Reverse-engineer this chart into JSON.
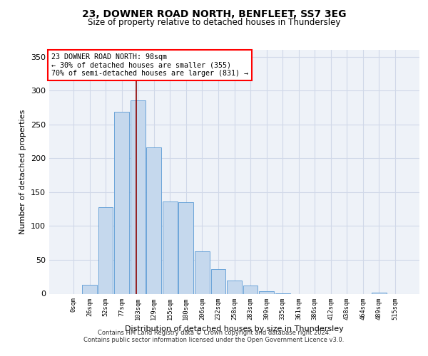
{
  "title": "23, DOWNER ROAD NORTH, BENFLEET, SS7 3EG",
  "subtitle": "Size of property relative to detached houses in Thundersley",
  "xlabel": "Distribution of detached houses by size in Thundersley",
  "ylabel": "Number of detached properties",
  "footer_line1": "Contains HM Land Registry data © Crown copyright and database right 2024.",
  "footer_line2": "Contains public sector information licensed under the Open Government Licence v3.0.",
  "bin_labels": [
    "0sqm",
    "26sqm",
    "52sqm",
    "77sqm",
    "103sqm",
    "129sqm",
    "155sqm",
    "180sqm",
    "206sqm",
    "232sqm",
    "258sqm",
    "283sqm",
    "309sqm",
    "335sqm",
    "361sqm",
    "386sqm",
    "412sqm",
    "438sqm",
    "464sqm",
    "489sqm",
    "515sqm"
  ],
  "bar_heights": [
    0,
    13,
    128,
    269,
    285,
    216,
    136,
    135,
    63,
    36,
    19,
    12,
    4,
    1,
    0,
    0,
    0,
    0,
    0,
    2,
    0
  ],
  "bar_color": "#c5d8ed",
  "bar_edge_color": "#5b9bd5",
  "grid_color": "#d0d8e8",
  "background_color": "#eef2f8",
  "property_line_x": 3.92,
  "annotation_text": "23 DOWNER ROAD NORTH: 98sqm\n← 30% of detached houses are smaller (355)\n70% of semi-detached houses are larger (831) →",
  "annotation_box_color": "white",
  "annotation_box_edge_color": "red",
  "ylim": [
    0,
    360
  ],
  "yticks": [
    0,
    50,
    100,
    150,
    200,
    250,
    300,
    350
  ]
}
